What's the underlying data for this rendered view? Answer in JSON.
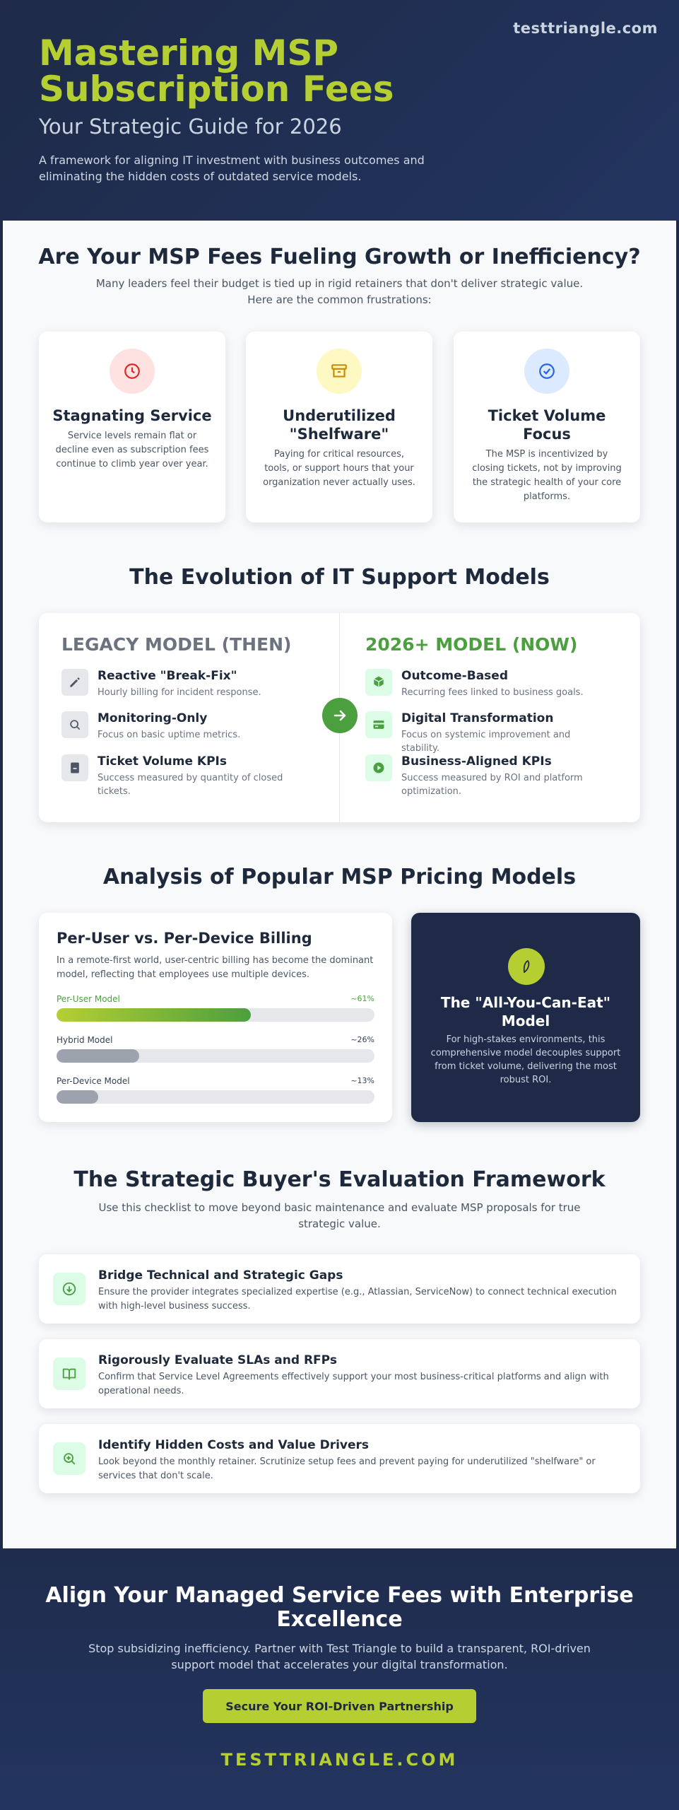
{
  "hero": {
    "site_tag": "testtriangle.com",
    "title": "Mastering MSP Subscription Fees",
    "subtitle": "Your Strategic Guide for 2026",
    "description": "A framework for aligning IT investment with business outcomes and eliminating the hidden costs of outdated service models."
  },
  "problems": {
    "title": "Are Your MSP Fees Fueling Growth or Inefficiency?",
    "description": "Many leaders feel their budget is tied up in rigid retainers that don't deliver strategic value. Here are the common frustrations:",
    "cards": [
      {
        "icon": "clock-icon",
        "title": "Stagnating Service",
        "text": "Service levels remain flat or decline even as subscription fees continue to climb year over year.",
        "color": "#dc2626",
        "bg": "#fee2e2"
      },
      {
        "icon": "archive-box-icon",
        "title": "Underutilized \"Shelfware\"",
        "text": "Paying for critical resources, tools, or support hours that your organization never actually uses.",
        "color": "#ca8a04",
        "bg": "#fef9c3"
      },
      {
        "icon": "check-circle-icon",
        "title": "Ticket Volume Focus",
        "text": "The MSP is incentivized by closing tickets, not by improving the strategic health of your core platforms.",
        "color": "#2563eb",
        "bg": "#dbeafe"
      }
    ]
  },
  "evolution": {
    "title": "The Evolution of IT Support Models",
    "legacy": {
      "heading": "LEGACY MODEL (THEN)",
      "color": "#6b7280",
      "items": [
        {
          "icon": "pencil-square-icon",
          "title": "Reactive \"Break-Fix\"",
          "text": "Hourly billing for incident response."
        },
        {
          "icon": "magnifier-icon",
          "title": "Monitoring-Only",
          "text": "Focus on basic uptime metrics."
        },
        {
          "icon": "ticket-icon",
          "title": "Ticket Volume KPIs",
          "text": "Success measured by quantity of closed tickets."
        }
      ]
    },
    "modern": {
      "heading": "2026+ MODEL (NOW)",
      "color": "#4c9f3f",
      "items": [
        {
          "icon": "cube-icon",
          "title": "Outcome-Based",
          "text": "Recurring fees linked to business goals."
        },
        {
          "icon": "credit-card-icon",
          "title": "Digital Transformation",
          "text": "Focus on systemic improvement and stability."
        },
        {
          "icon": "play-circle-icon",
          "title": "Business-Aligned KPIs",
          "text": "Success measured by ROI and platform optimization."
        }
      ]
    }
  },
  "pricing": {
    "title": "Analysis of Popular MSP Pricing Models",
    "card_title": "Per-User vs. Per-Device Billing",
    "card_desc": "In a remote-first world, user-centric billing has become the dominant model, reflecting that employees use multiple devices.",
    "bars": [
      {
        "label": "Per-User Model",
        "pct_label": "~61%",
        "value": 61,
        "color": "#4c9f3f"
      },
      {
        "label": "Hybrid Model",
        "pct_label": "~26%",
        "value": 26,
        "color": "#9ca3af"
      },
      {
        "label": "Per-Device Model",
        "pct_label": "~13%",
        "value": 13,
        "color": "#9ca3af"
      }
    ],
    "aye": {
      "icon": "leaf-icon",
      "title": "The \"All-You-Can-Eat\" Model",
      "text": "For high-stakes environments, this comprehensive model decouples support from ticket volume, delivering the most robust ROI."
    }
  },
  "framework": {
    "title": "The Strategic Buyer's Evaluation Framework",
    "description": "Use this checklist to move beyond basic maintenance and evaluate MSP proposals for true strategic value.",
    "items": [
      {
        "icon": "arrow-down-circle-icon",
        "title": "Bridge Technical and Strategic Gaps",
        "text": "Ensure the provider integrates specialized expertise (e.g., Atlassian, ServiceNow) to connect technical execution with high-level business success."
      },
      {
        "icon": "open-book-icon",
        "title": "Rigorously Evaluate SLAs and RFPs",
        "text": "Confirm that Service Level Agreements effectively support your most business-critical platforms and align with operational needs."
      },
      {
        "icon": "zoom-in-icon",
        "title": "Identify Hidden Costs and Value Drivers",
        "text": "Look beyond the monthly retainer. Scrutinize setup fees and prevent paying for underutilized \"shelfware\" or services that don't scale."
      }
    ]
  },
  "footer": {
    "title": "Align Your Managed Service Fees with Enterprise Excellence",
    "text": "Stop subsidizing inefficiency. Partner with Test Triangle to build a transparent, ROI-driven support model that accelerates your digital transformation.",
    "cta": "Secure Your ROI-Driven Partnership",
    "brand": "TESTTRIANGLE.COM"
  },
  "colors": {
    "accent": "#b5cf33",
    "navy": "#1e2a48",
    "green": "#4c9f3f"
  }
}
